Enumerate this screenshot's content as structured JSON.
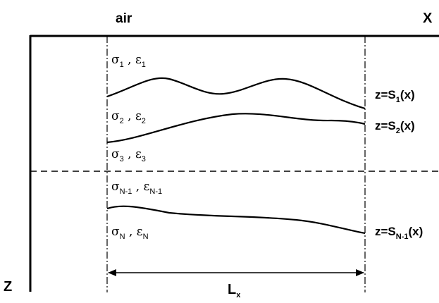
{
  "header": {
    "air_label": "air",
    "x_axis_label": "X"
  },
  "z_axis_label": "Z",
  "layers": [
    {
      "sigma_sub": "1",
      "eps_sub": "1"
    },
    {
      "sigma_sub": "2",
      "eps_sub": "2"
    },
    {
      "sigma_sub": "3",
      "eps_sub": "3"
    },
    {
      "sigma_sub": "N-1",
      "eps_sub": "N-1"
    },
    {
      "sigma_sub": "N",
      "eps_sub": "N"
    }
  ],
  "symbols": {
    "sigma": "σ",
    "epsilon": "ε",
    "separator": " , "
  },
  "interfaces": [
    {
      "prefix": "z=S",
      "sub": "1",
      "suffix": "(x)"
    },
    {
      "prefix": "z=S",
      "sub": "2",
      "suffix": "(x)"
    },
    {
      "prefix": "z=S",
      "sub": "N-1",
      "suffix": "(x)"
    }
  ],
  "period": {
    "main": "L",
    "sub": "x"
  }
}
